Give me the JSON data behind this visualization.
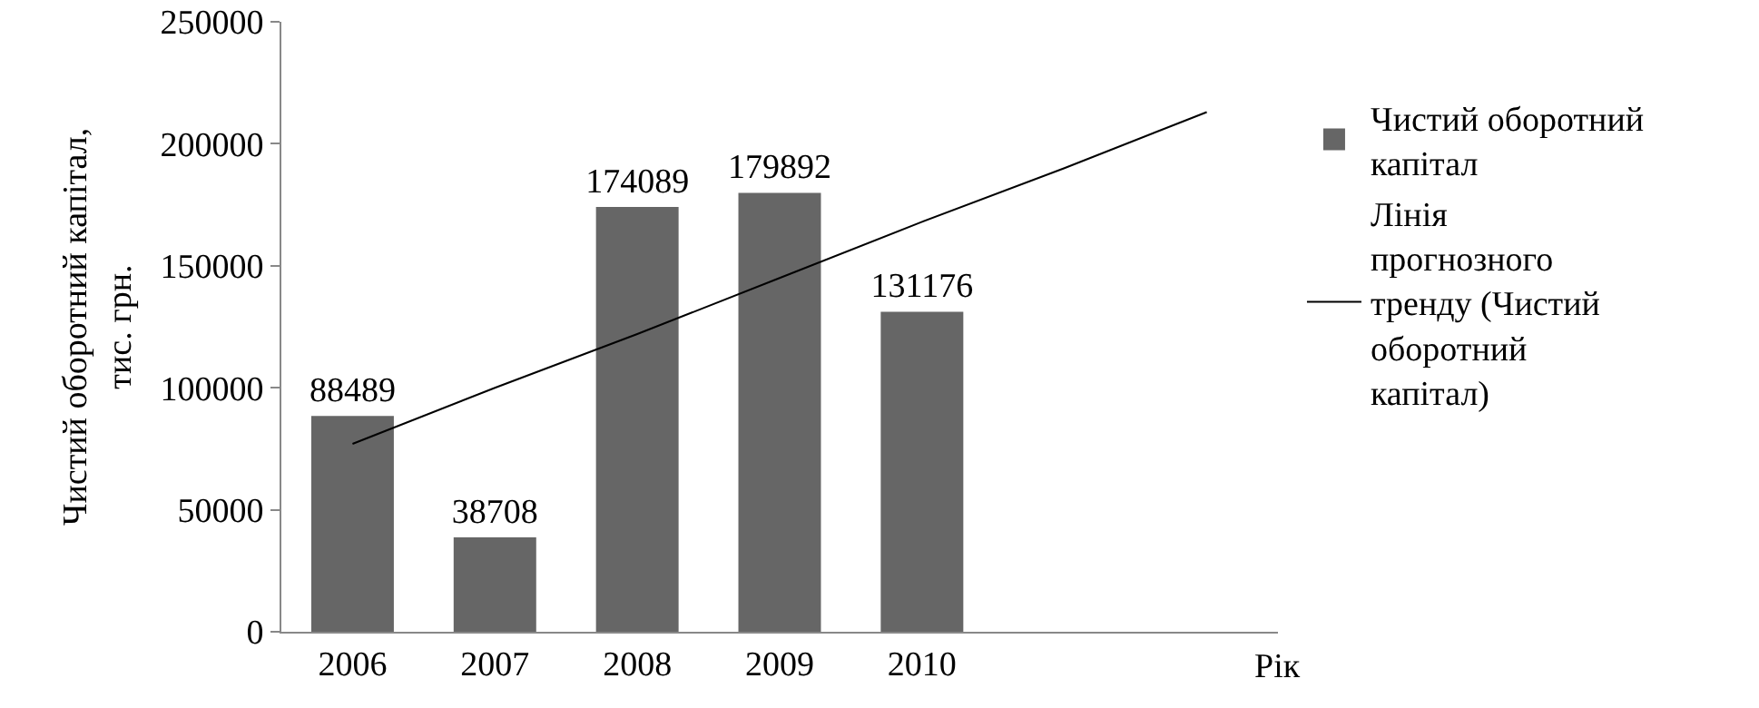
{
  "chart_data": {
    "type": "bar",
    "ylabel": "Чистий оборотний капітал, тис. грн.",
    "xlabel": "Рік",
    "categories": [
      "2006",
      "2007",
      "2008",
      "2009",
      "2010",
      null,
      null
    ],
    "series": [
      {
        "name": "Чистий оборотний капітал",
        "color": "#666666",
        "values": [
          88489,
          38708,
          174089,
          179892,
          131176,
          null,
          null
        ],
        "value_labels": [
          "88489",
          "38708",
          "174089",
          "179892",
          "131176",
          null,
          null
        ]
      },
      {
        "name": "Лінія прогнозного тренду (Чистий оборотний капітал)",
        "type": "line",
        "color": "#000000",
        "values": [
          77000,
          100000,
          122000,
          145000,
          168000,
          190000,
          213000
        ]
      }
    ],
    "ylim": [
      0,
      250000
    ],
    "yticks": [
      0,
      50000,
      100000,
      150000,
      200000,
      250000
    ],
    "grid": false,
    "legend": "right"
  }
}
